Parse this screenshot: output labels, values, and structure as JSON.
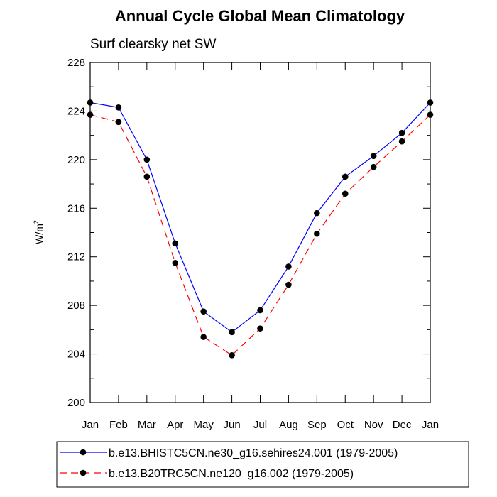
{
  "chart_data": {
    "type": "line",
    "title": "Annual Cycle Global Mean Climatology",
    "subtitle": "Surf clearsky net SW",
    "xlabel": "",
    "ylabel": "W/m",
    "ylabel_superscript": "2",
    "categories": [
      "Jan",
      "Feb",
      "Mar",
      "Apr",
      "May",
      "Jun",
      "Jul",
      "Aug",
      "Sep",
      "Oct",
      "Nov",
      "Dec",
      "Jan"
    ],
    "ylim": [
      200,
      228
    ],
    "yticks": [
      200,
      204,
      208,
      212,
      216,
      220,
      224,
      228
    ],
    "ytick_labels": [
      "200",
      "204",
      "208",
      "212",
      "216",
      "220",
      "224",
      "228"
    ],
    "grid": false,
    "legend_position": "bottom",
    "series": [
      {
        "name": "b.e13.BHISTC5CN.ne30_g16.sehires24.001 (1979-2005)",
        "color": "#0000ff",
        "style": "solid",
        "marker": "filled-circle",
        "values": [
          224.7,
          224.3,
          220.0,
          213.1,
          207.5,
          205.8,
          207.6,
          211.2,
          215.6,
          218.6,
          220.3,
          222.2,
          224.7
        ]
      },
      {
        "name": "b.e13.B20TRC5CN.ne120_g16.002 (1979-2005)",
        "color": "#ff0000",
        "style": "dashed",
        "marker": "filled-circle",
        "values": [
          223.7,
          223.1,
          218.6,
          211.5,
          205.4,
          203.9,
          206.1,
          209.7,
          213.9,
          217.2,
          219.4,
          221.5,
          223.7
        ]
      }
    ]
  }
}
